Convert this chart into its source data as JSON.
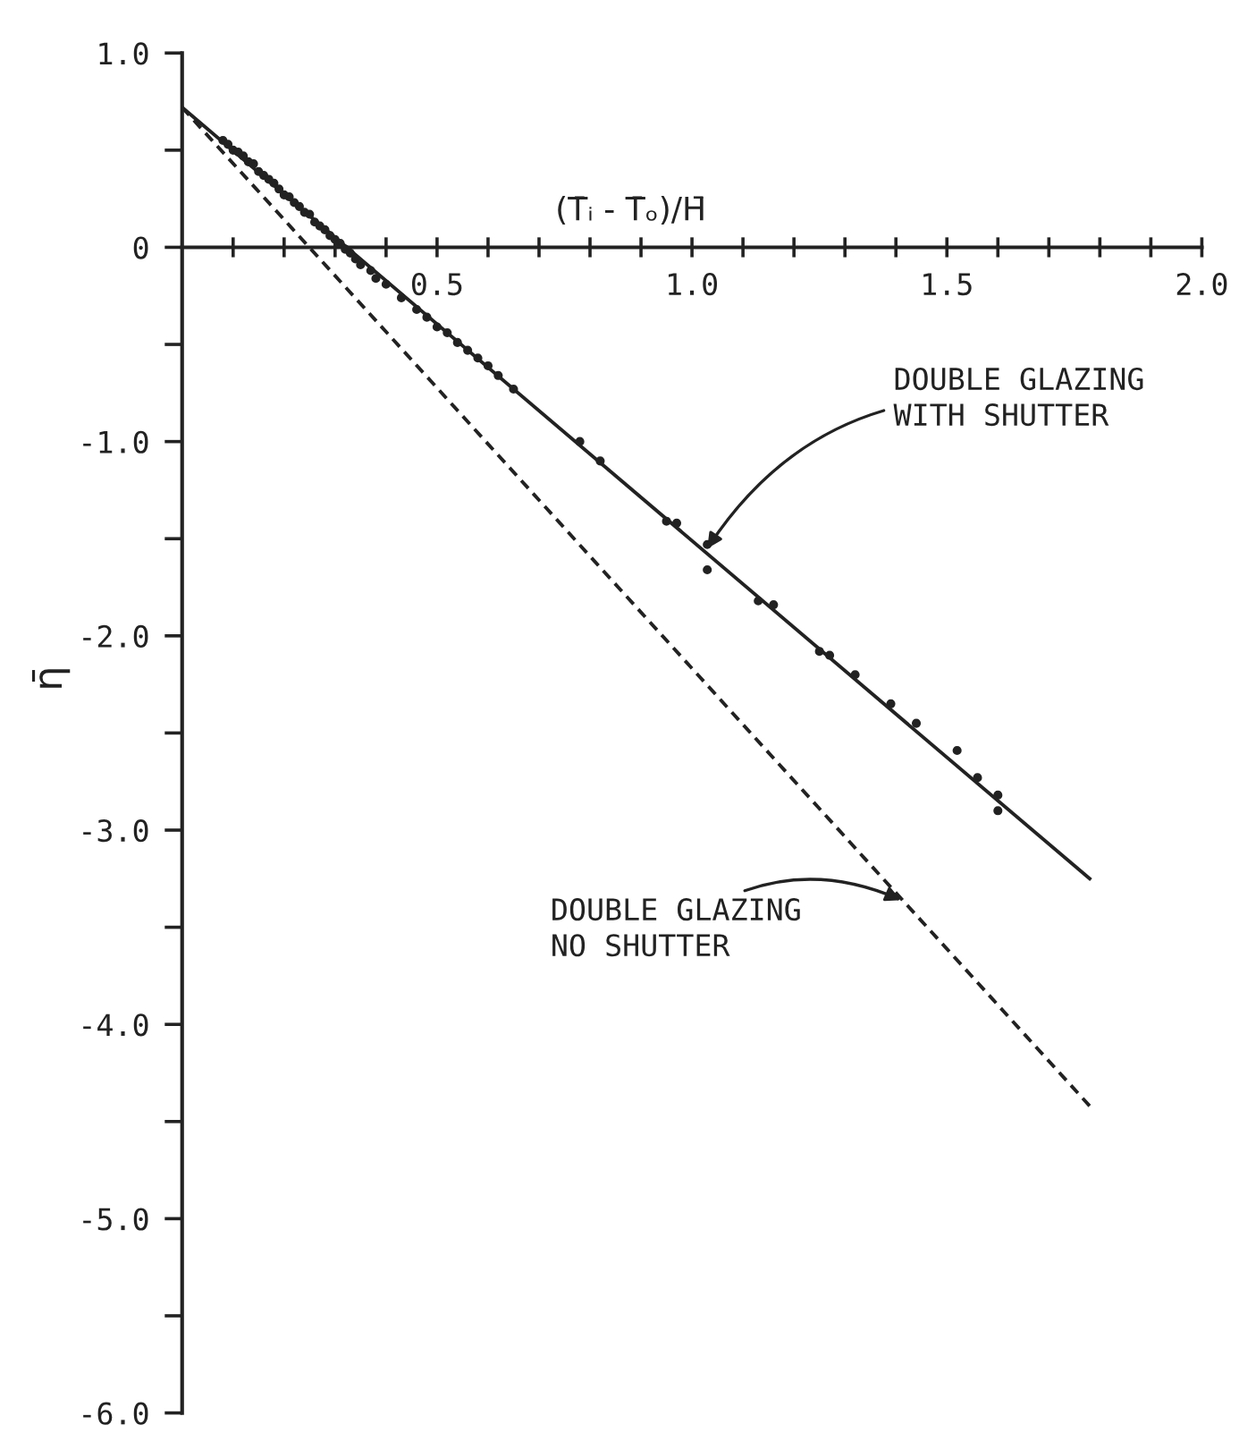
{
  "chart_data": {
    "type": "scatter",
    "xlabel": "(T̄ᵢ - T̄ₒ)/H̄",
    "ylabel": "η̄",
    "xlim": [
      0,
      2.0
    ],
    "ylim": [
      -6.0,
      1.0
    ],
    "xticks": [
      {
        "value": 0.1,
        "label": null
      },
      {
        "value": 0.2,
        "label": null
      },
      {
        "value": 0.3,
        "label": null
      },
      {
        "value": 0.4,
        "label": null
      },
      0.5,
      {
        "value": 0.6,
        "label": null
      },
      {
        "value": 0.7,
        "label": null
      },
      {
        "value": 0.8,
        "label": null
      },
      {
        "value": 0.9,
        "label": null
      },
      {
        "value": 1.0,
        "label": "1.0"
      },
      {
        "value": 1.1,
        "label": null
      },
      {
        "value": 1.2,
        "label": null
      },
      {
        "value": 1.3,
        "label": null
      },
      {
        "value": 1.4,
        "label": null
      },
      1.5,
      {
        "value": 1.6,
        "label": null
      },
      {
        "value": 1.7,
        "label": null
      },
      {
        "value": 1.8,
        "label": null
      },
      {
        "value": 1.9,
        "label": null
      },
      {
        "value": 2.0,
        "label": "2.0"
      }
    ],
    "yticks": [
      {
        "value": 1.0,
        "label": "1.0"
      },
      {
        "value": 0.5,
        "label": null
      },
      0,
      {
        "value": -0.5,
        "label": null
      },
      {
        "value": -1.0,
        "label": "-1.0"
      },
      {
        "value": -1.5,
        "label": null
      },
      {
        "value": -2.0,
        "label": "-2.0"
      },
      {
        "value": -2.5,
        "label": null
      },
      {
        "value": -3.0,
        "label": "-3.0"
      },
      {
        "value": -3.5,
        "label": null
      },
      {
        "value": -4.0,
        "label": "-4.0"
      },
      {
        "value": -4.5,
        "label": null
      },
      {
        "value": -5.0,
        "label": "-5.0"
      },
      {
        "value": -5.5,
        "label": null
      },
      {
        "value": -6.0,
        "label": "-6.0"
      }
    ],
    "grid": false,
    "legend": false,
    "series": [
      {
        "color": "#222222",
        "marker": "circle",
        "x": [
          0.08,
          0.09,
          0.1,
          0.11,
          0.12,
          0.13,
          0.14,
          0.15,
          0.16,
          0.17,
          0.18,
          0.19,
          0.2,
          0.21,
          0.22,
          0.23,
          0.24,
          0.25,
          0.26,
          0.27,
          0.28,
          0.29,
          0.3,
          0.31,
          0.32,
          0.33,
          0.34,
          0.35,
          0.37,
          0.38,
          0.4,
          0.43,
          0.46,
          0.48,
          0.5,
          0.52,
          0.54,
          0.56,
          0.58,
          0.6,
          0.62,
          0.65,
          0.78,
          0.82,
          0.95,
          0.97,
          1.03,
          1.03,
          1.13,
          1.16,
          1.25,
          1.27,
          1.32,
          1.39,
          1.44,
          1.52,
          1.56,
          1.6,
          1.6
        ],
        "values": [
          0.55,
          0.53,
          0.5,
          0.49,
          0.47,
          0.44,
          0.43,
          0.39,
          0.37,
          0.35,
          0.33,
          0.3,
          0.27,
          0.26,
          0.23,
          0.21,
          0.18,
          0.17,
          0.13,
          0.11,
          0.09,
          0.06,
          0.04,
          0.02,
          -0.01,
          -0.03,
          -0.06,
          -0.09,
          -0.12,
          -0.16,
          -0.19,
          -0.26,
          -0.32,
          -0.36,
          -0.41,
          -0.44,
          -0.49,
          -0.53,
          -0.57,
          -0.61,
          -0.66,
          -0.73,
          -1.0,
          -1.1,
          -1.41,
          -1.42,
          -1.53,
          -1.66,
          -1.82,
          -1.84,
          -2.08,
          -2.1,
          -2.2,
          -2.35,
          -2.45,
          -2.59,
          -2.73,
          -2.82,
          -2.9
        ]
      },
      {
        "type": "line",
        "color": "#222222",
        "line_style": "solid",
        "x": [
          0,
          1.78
        ],
        "values": [
          0.72,
          -3.25
        ]
      },
      {
        "type": "line",
        "color": "#222222",
        "line_style": "dashed",
        "x": [
          0,
          1.78
        ],
        "values": [
          0.72,
          -4.42
        ]
      }
    ],
    "annotations": [
      {
        "text": "DOUBLE GLAZING\nWITH SHUTTER",
        "x": 1.03,
        "y": -1.55
      },
      {
        "text": "DOUBLE GLAZING\nNO SHUTTER",
        "x": 1.41,
        "y": -3.36
      }
    ]
  }
}
